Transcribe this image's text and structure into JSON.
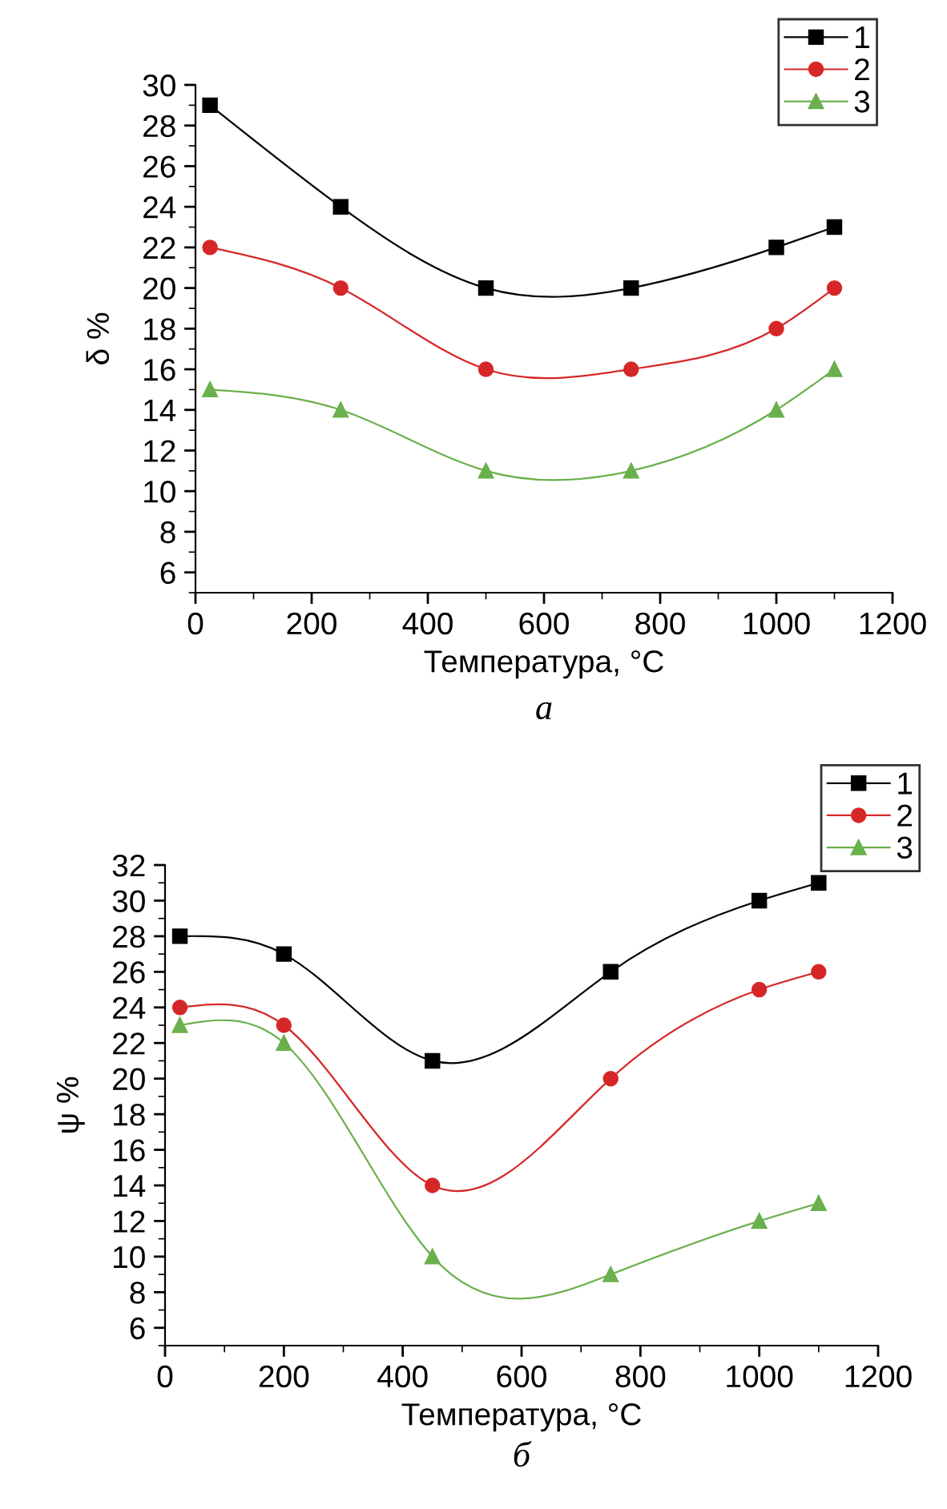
{
  "chart_data": [
    {
      "type": "line",
      "xlabel": "Температура, °C",
      "ylabel": "δ %",
      "annotations": [
        "а"
      ],
      "x": [
        25,
        250,
        500,
        750,
        1000,
        1100
      ],
      "series": [
        {
          "name": "1",
          "color": "#000000",
          "marker": "square",
          "values": [
            29,
            24,
            20,
            20,
            22,
            23
          ]
        },
        {
          "name": "2",
          "color": "#d62728",
          "marker": "circle",
          "values": [
            22,
            20,
            16,
            16,
            18,
            20
          ]
        },
        {
          "name": "3",
          "color": "#6ab04c",
          "marker": "triangle",
          "values": [
            15,
            14,
            11,
            11,
            14,
            16
          ]
        }
      ],
      "xlim": [
        0,
        1200
      ],
      "xticks": [
        0,
        200,
        400,
        600,
        800,
        1000,
        1200
      ],
      "ylim": [
        5,
        30
      ],
      "yticks": [
        6,
        8,
        10,
        12,
        14,
        16,
        18,
        20,
        22,
        24,
        26,
        28,
        30
      ],
      "grid": false,
      "legend": "top right"
    },
    {
      "type": "line",
      "xlabel": "Температура, °C",
      "ylabel": "ψ %",
      "annotations": [
        "б"
      ],
      "x": [
        25,
        200,
        450,
        750,
        1000,
        1100
      ],
      "series": [
        {
          "name": "1",
          "color": "#000000",
          "marker": "square",
          "values": [
            28,
            27,
            21,
            26,
            30,
            31
          ]
        },
        {
          "name": "2",
          "color": "#d62728",
          "marker": "circle",
          "values": [
            24,
            23,
            14,
            20,
            25,
            26
          ]
        },
        {
          "name": "3",
          "color": "#6ab04c",
          "marker": "triangle",
          "values": [
            23,
            22,
            10,
            9,
            12,
            13
          ]
        }
      ],
      "xlim": [
        0,
        1200
      ],
      "xticks": [
        0,
        200,
        400,
        600,
        800,
        1000,
        1200
      ],
      "ylim": [
        5,
        32
      ],
      "yticks": [
        6,
        8,
        10,
        12,
        14,
        16,
        18,
        20,
        22,
        24,
        26,
        28,
        30,
        32
      ],
      "grid": false,
      "legend": "top right"
    }
  ]
}
